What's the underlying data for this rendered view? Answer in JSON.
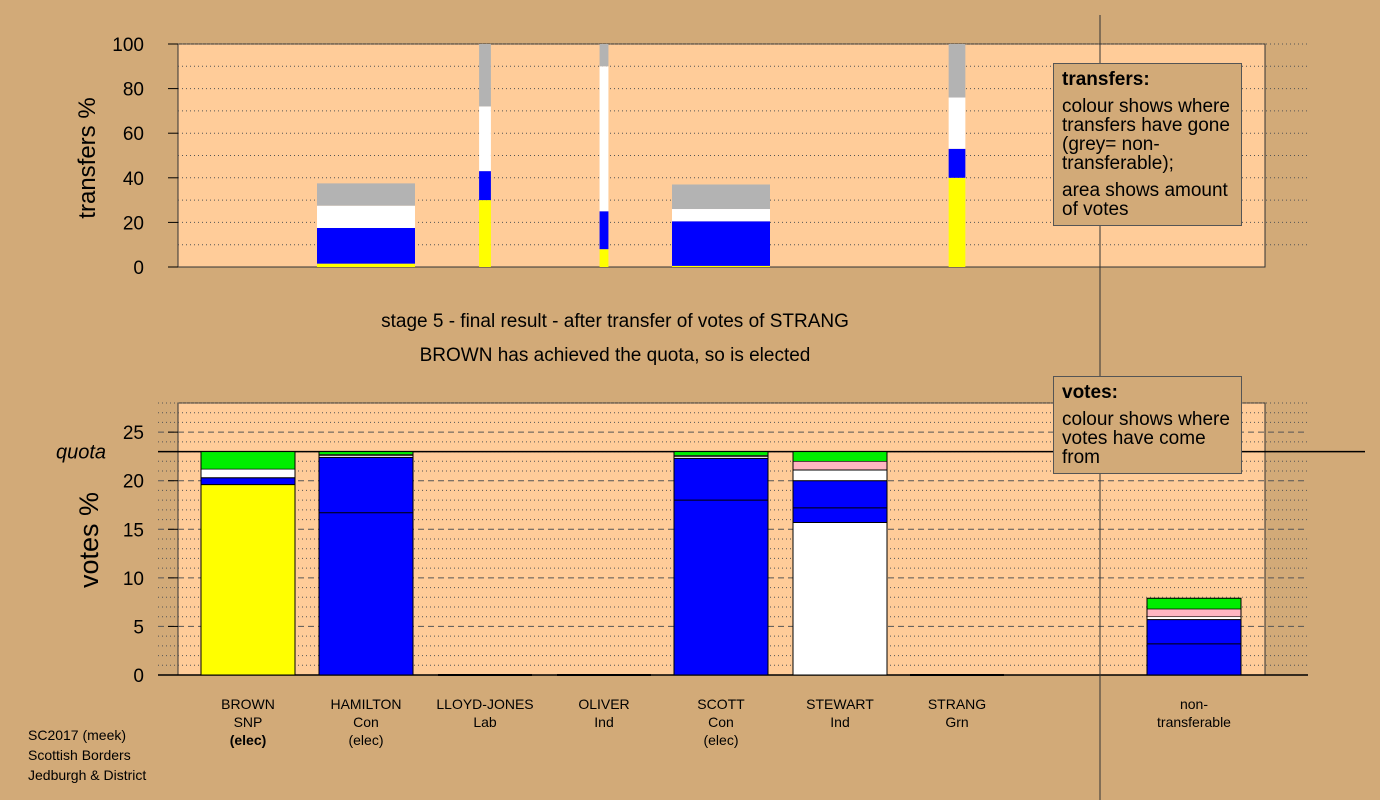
{
  "stage_title": "stage 5 - final result - after transfer of votes of STRANG",
  "stage_subtitle": "BROWN has achieved the quota, so is elected",
  "transfers_legend": {
    "title": "transfers:",
    "line1": "colour shows where transfers have gone (grey= non-transferable);",
    "line2": "area shows amount of votes"
  },
  "votes_legend": {
    "title": "votes:",
    "line1": "colour shows where votes have come from"
  },
  "footer": [
    "SC2017 (meek)",
    "Scottish Borders",
    "Jedburgh & District"
  ],
  "colors": {
    "background": "#d2aa78",
    "plot": "#ffcc99",
    "SNP": "#ffff00",
    "Con": "#0000ff",
    "Ind": "#ffffff",
    "Lab": "#ffb6c1",
    "Grn": "#00ee00",
    "nontransferable": "#b3b3b3"
  },
  "chart_data": [
    {
      "type": "bar",
      "stacked": true,
      "ylabel": "transfers %",
      "ylim": [
        0,
        100
      ],
      "yticks": [
        0,
        20,
        40,
        60,
        80,
        100
      ],
      "grid": "dotted",
      "categories": [
        "BROWN",
        "HAMILTON",
        "LLOYD-JONES",
        "OLIVER",
        "SCOTT",
        "STEWART",
        "STRANG"
      ],
      "bars": [
        {
          "category": "BROWN",
          "width": 0,
          "segments": []
        },
        {
          "category": "HAMILTON",
          "width": 1.0,
          "segments": [
            {
              "color": "SNP",
              "value": 1.5
            },
            {
              "color": "Con",
              "value": 16
            },
            {
              "color": "Ind",
              "value": 10
            },
            {
              "color": "nontransferable",
              "value": 10
            }
          ]
        },
        {
          "category": "LLOYD-JONES",
          "width": 0.1,
          "segments": [
            {
              "color": "SNP",
              "value": 30
            },
            {
              "color": "Con",
              "value": 13
            },
            {
              "color": "Ind",
              "value": 29
            },
            {
              "color": "nontransferable",
              "value": 28
            }
          ]
        },
        {
          "category": "OLIVER",
          "width": 0.07,
          "segments": [
            {
              "color": "SNP",
              "value": 8
            },
            {
              "color": "Con",
              "value": 17
            },
            {
              "color": "Ind",
              "value": 65
            },
            {
              "color": "nontransferable",
              "value": 10
            }
          ]
        },
        {
          "category": "SCOTT",
          "width": 1.0,
          "segments": [
            {
              "color": "SNP",
              "value": 0.5
            },
            {
              "color": "Con",
              "value": 20
            },
            {
              "color": "Ind",
              "value": 5.5
            },
            {
              "color": "nontransferable",
              "value": 11
            }
          ]
        },
        {
          "category": "STEWART",
          "width": 0,
          "segments": []
        },
        {
          "category": "STRANG",
          "width": 0.15,
          "segments": [
            {
              "color": "SNP",
              "value": 40
            },
            {
              "color": "Con",
              "value": 13
            },
            {
              "color": "Ind",
              "value": 23
            },
            {
              "color": "nontransferable",
              "value": 24
            }
          ]
        }
      ]
    },
    {
      "type": "bar",
      "stacked": true,
      "ylabel": "votes %",
      "ylim": [
        0,
        28
      ],
      "yticks": [
        0,
        5,
        10,
        15,
        20,
        25
      ],
      "quota": 23,
      "quota_label": "quota",
      "grid": "dotted",
      "categories": [
        "BROWN",
        "HAMILTON",
        "LLOYD-JONES",
        "OLIVER",
        "SCOTT",
        "STEWART",
        "STRANG",
        "non-transferable"
      ],
      "candidates": [
        {
          "name": "BROWN",
          "party": "SNP",
          "status": "(elec)",
          "status_bold": true,
          "segments": [
            {
              "color": "SNP",
              "value": 19.6
            },
            {
              "color": "Con",
              "value": 0.7
            },
            {
              "color": "Ind",
              "value": 0.9
            },
            {
              "color": "Grn",
              "value": 1.8
            }
          ],
          "lines": [
            19.6,
            20.3
          ]
        },
        {
          "name": "HAMILTON",
          "party": "Con",
          "status": "(elec)",
          "status_bold": false,
          "segments": [
            {
              "color": "Con",
              "value": 22.4
            },
            {
              "color": "Ind",
              "value": 0.2
            },
            {
              "color": "Lab",
              "value": 0.1
            },
            {
              "color": "Grn",
              "value": 0.3
            }
          ],
          "lines": [
            16.7,
            22.4
          ]
        },
        {
          "name": "LLOYD-JONES",
          "party": "Lab",
          "status": "",
          "status_bold": false,
          "segments": []
        },
        {
          "name": "OLIVER",
          "party": "Ind",
          "status": "",
          "status_bold": false,
          "segments": []
        },
        {
          "name": "SCOTT",
          "party": "Con",
          "status": "(elec)",
          "status_bold": false,
          "segments": [
            {
              "color": "Con",
              "value": 22.3
            },
            {
              "color": "Ind",
              "value": 0.2
            },
            {
              "color": "Lab",
              "value": 0.1
            },
            {
              "color": "Grn",
              "value": 0.4
            }
          ],
          "lines": [
            18.0,
            22.3
          ]
        },
        {
          "name": "STEWART",
          "party": "Ind",
          "status": "",
          "status_bold": false,
          "segments": [
            {
              "color": "Ind",
              "value": 15.7
            },
            {
              "color": "Con",
              "value": 4.3
            },
            {
              "color": "Ind",
              "value": 1.1
            },
            {
              "color": "Lab",
              "value": 0.9
            },
            {
              "color": "Grn",
              "value": 1.0
            }
          ],
          "lines": [
            15.7,
            17.2,
            20.0,
            21.1
          ]
        },
        {
          "name": "STRANG",
          "party": "Grn",
          "status": "",
          "status_bold": false,
          "segments": []
        },
        {
          "name": "non-",
          "party": "transferable",
          "status": "",
          "status_bold": false,
          "segments": [
            {
              "color": "Con",
              "value": 5.7
            },
            {
              "color": "Ind",
              "value": 0.3
            },
            {
              "color": "Lab",
              "value": 0.8
            },
            {
              "color": "Grn",
              "value": 1.1
            }
          ],
          "lines": [
            3.2,
            5.7
          ]
        }
      ]
    }
  ]
}
